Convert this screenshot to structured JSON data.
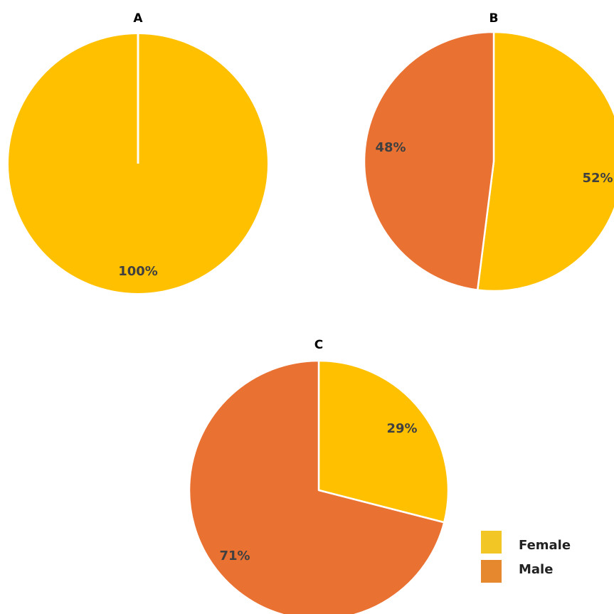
{
  "chart_data": [
    {
      "type": "pie",
      "title": "A",
      "categories": [
        "Female",
        "Male"
      ],
      "values": [
        100,
        0
      ],
      "labels": [
        "100%",
        ""
      ]
    },
    {
      "type": "pie",
      "title": "B",
      "categories": [
        "Female",
        "Male"
      ],
      "values": [
        52,
        48
      ],
      "labels": [
        "52%",
        "48%"
      ]
    },
    {
      "type": "pie",
      "title": "C",
      "categories": [
        "Female",
        "Male"
      ],
      "values": [
        29,
        71
      ],
      "labels": [
        "29%",
        "71%"
      ]
    }
  ],
  "legend": {
    "placement": "bottom-right",
    "items": [
      {
        "label": "Female",
        "color": "#F2C624"
      },
      {
        "label": "Male",
        "color": "#E6892E"
      }
    ]
  },
  "colors": {
    "Female": "#FFC000",
    "Male": "#E97132",
    "separator": "#ffffff",
    "label_text": "#404040"
  }
}
